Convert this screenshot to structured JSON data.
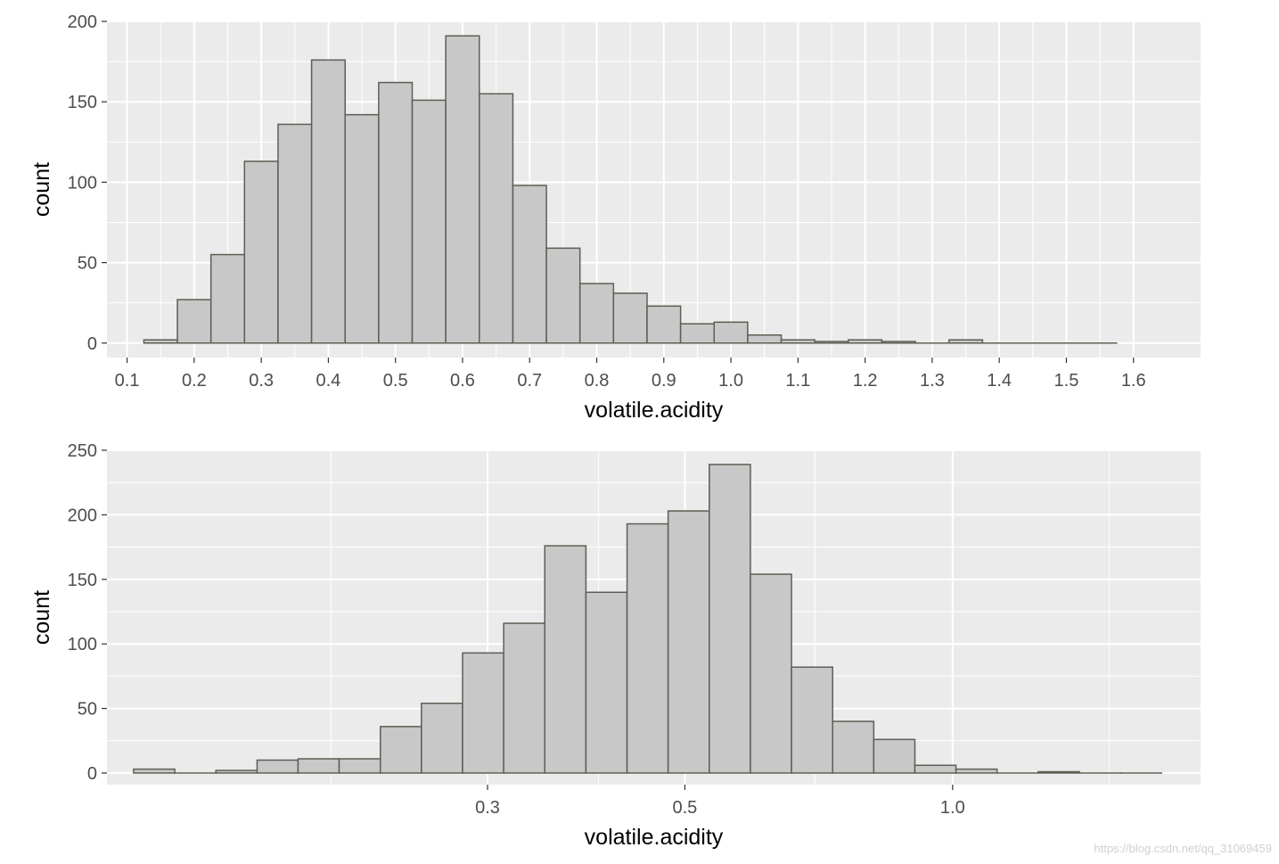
{
  "chart_data": [
    {
      "type": "bar",
      "xscale": "linear",
      "xlabel": "volatile.acidity",
      "ylabel": "count",
      "xlim": [
        0.07,
        1.7
      ],
      "ylim": [
        -9,
        200
      ],
      "xticks": [
        0.1,
        0.2,
        0.3,
        0.4,
        0.5,
        0.6,
        0.7,
        0.8,
        0.9,
        1.0,
        1.1,
        1.2,
        1.3,
        1.4,
        1.5,
        1.6
      ],
      "xtick_labels": [
        "0.1",
        "0.2",
        "0.3",
        "0.4",
        "0.5",
        "0.6",
        "0.7",
        "0.8",
        "0.9",
        "1.0",
        "1.1",
        "1.2",
        "1.3",
        "1.4",
        "1.5",
        "1.6"
      ],
      "yticks": [
        0,
        50,
        100,
        150,
        200
      ],
      "ytick_labels": [
        "0",
        "50",
        "100",
        "150",
        "200"
      ],
      "grid": true,
      "bin_edges": [
        0.125,
        0.175,
        0.225,
        0.275,
        0.325,
        0.375,
        0.425,
        0.475,
        0.525,
        0.575,
        0.625,
        0.675,
        0.725,
        0.775,
        0.825,
        0.875,
        0.925,
        0.975,
        1.025,
        1.075,
        1.125,
        1.175,
        1.225,
        1.275,
        1.325,
        1.375,
        1.425,
        1.475,
        1.525,
        1.575
      ],
      "values": [
        2,
        27,
        55,
        113,
        136,
        176,
        142,
        162,
        151,
        191,
        155,
        98,
        59,
        37,
        31,
        23,
        12,
        13,
        5,
        2,
        1,
        2,
        1,
        0,
        2,
        0,
        0,
        0,
        0
      ]
    },
    {
      "type": "bar",
      "xscale": "log10",
      "xlabel": "volatile.acidity",
      "ylabel": "count",
      "xlim": [
        0.112,
        1.9
      ],
      "ylim": [
        -9,
        250
      ],
      "xticks": [
        0.3,
        0.5,
        1.0
      ],
      "xtick_labels": [
        "0.3",
        "0.5",
        "1.0"
      ],
      "minor_xticks": [
        0.2,
        0.4,
        0.7,
        1.5
      ],
      "yticks": [
        0,
        50,
        100,
        150,
        200,
        250
      ],
      "ytick_labels": [
        "0",
        "50",
        "100",
        "150",
        "200",
        "250"
      ],
      "grid": true,
      "bin_edges": [
        0.12,
        0.1335,
        0.1485,
        0.1652,
        0.1837,
        0.2043,
        0.2273,
        0.2528,
        0.2812,
        0.3128,
        0.3479,
        0.387,
        0.4305,
        0.4788,
        0.5326,
        0.5924,
        0.6589,
        0.733,
        0.8153,
        0.9069,
        1.0087,
        1.122,
        1.2481,
        1.3883,
        1.5443,
        1.7177
      ],
      "values": [
        3,
        0,
        2,
        10,
        11,
        11,
        36,
        54,
        93,
        116,
        176,
        140,
        193,
        203,
        239,
        154,
        82,
        40,
        26,
        6,
        3,
        0,
        1,
        0,
        0
      ]
    }
  ],
  "watermark": "https://blog.csdn.net/qq_31069459"
}
